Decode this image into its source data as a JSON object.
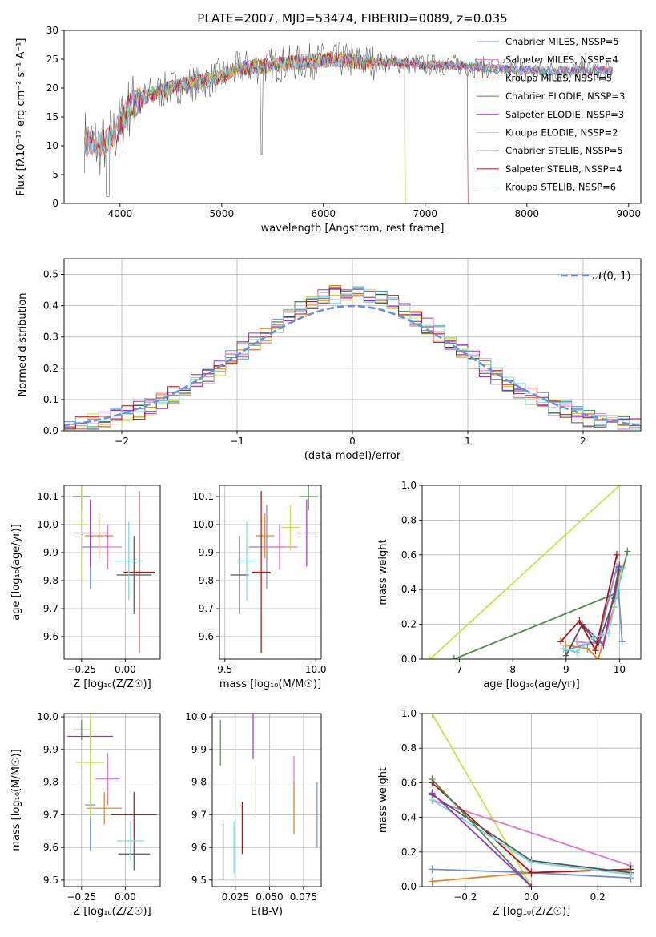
{
  "figure_title": "PLATE=2007, MJD=53474, FIBERID=0089, z=0.035",
  "colors": {
    "Chabrier MILES": "#6a8fdc",
    "Salpeter MILES": "#e377c2",
    "Kroupa MILES": "#e6801c",
    "Chabrier ELODIE": "#4f8a50",
    "Salpeter ELODIE": "#9b30c8",
    "Kroupa ELODIE": "#c8e24a",
    "Chabrier STELIB": "#555555",
    "Salpeter STELIB": "#b01010",
    "Kroupa STELIB": "#7ad8e0",
    "normal_curve": "#6a8fdc"
  },
  "chart_data": [
    {
      "id": "spectrum",
      "type": "line",
      "title": "PLATE=2007, MJD=53474, FIBERID=0089, z=0.035",
      "xlabel": "wavelength [Angstrom, rest frame]",
      "ylabel": "Flux [fλ10⁻¹⁷ erg cm⁻² s⁻¹ A⁻¹]",
      "xlim": [
        3450,
        9120
      ],
      "ylim": [
        0,
        30
      ],
      "xticks": [
        4000,
        5000,
        6000,
        7000,
        8000,
        9000
      ],
      "yticks": [
        0,
        5,
        10,
        15,
        20,
        25,
        30
      ],
      "legend_position": "top-right",
      "legend": [
        "Chabrier MILES, NSSP=5",
        "Salpeter MILES, NSSP=4",
        "Kroupa MILES, NSSP=5",
        "Chabrier ELODIE, NSSP=3",
        "Salpeter ELODIE, NSSP=3",
        "Kroupa ELODIE, NSSP=2",
        "Chabrier STELIB, NSSP=5",
        "Salpeter STELIB, NSSP=4",
        "Kroupa STELIB, NSSP=6"
      ],
      "continuum_x": [
        3650,
        3800,
        3950,
        4100,
        4300,
        4600,
        4900,
        5200,
        5500,
        5800,
        6100,
        6400,
        6700,
        7000,
        7300,
        7600,
        8000,
        8400,
        8850
      ],
      "continuum_y": [
        11,
        10,
        12,
        17,
        19,
        20.5,
        21.5,
        23.5,
        24,
        24.5,
        25,
        24.5,
        24.5,
        24,
        24,
        23.5,
        23,
        23,
        23
      ],
      "dropouts": [
        {
          "series": "Kroupa ELODIE",
          "x": 6800
        },
        {
          "series": "Salpeter STELIB",
          "x": 7420
        }
      ]
    },
    {
      "id": "residuals",
      "type": "histogram",
      "xlabel": "(data-model)/error",
      "ylabel": "Normed distribution",
      "xlim": [
        -2.5,
        2.5
      ],
      "ylim": [
        0,
        0.55
      ],
      "xticks": [
        -2,
        -1,
        0,
        1,
        2
      ],
      "yticks": [
        0.0,
        0.1,
        0.2,
        0.3,
        0.4,
        0.5
      ],
      "legend": [
        "𝒩(0, 1)"
      ],
      "legend_position": "top-right",
      "bin_width": 0.1
    },
    {
      "id": "age_vs_Z",
      "type": "errorbar",
      "xlabel": "Z [log₁₀(Z/Z☉)]",
      "ylabel": "age  [log₁₀(age/yr)]",
      "xlim": [
        -0.35,
        0.2
      ],
      "ylim": [
        9.52,
        10.14
      ],
      "xticks": [
        -0.25,
        0.0
      ],
      "xticklabels": [
        "−0.25",
        "0.00"
      ],
      "yticks": [
        9.6,
        9.7,
        9.8,
        9.9,
        10.0,
        10.1
      ],
      "points": [
        {
          "series": "Chabrier MILES",
          "x": -0.2,
          "y": 9.92,
          "xerr": 0.05,
          "yerr": 0.15
        },
        {
          "series": "Salpeter MILES",
          "x": -0.1,
          "y": 9.92,
          "xerr": 0.08,
          "yerr": 0.08
        },
        {
          "series": "Kroupa MILES",
          "x": -0.15,
          "y": 9.96,
          "xerr": 0.08,
          "yerr": 0.08
        },
        {
          "series": "Chabrier ELODIE",
          "x": -0.25,
          "y": 10.1,
          "xerr": 0.05,
          "yerr": 0.05
        },
        {
          "series": "Salpeter ELODIE",
          "x": -0.2,
          "y": 9.97,
          "xerr": 0.1,
          "yerr": 0.12
        },
        {
          "series": "Kroupa ELODIE",
          "x": -0.25,
          "y": 10.0,
          "xerr": 0.05,
          "yerr": 0.2
        },
        {
          "series": "Chabrier STELIB",
          "x": 0.05,
          "y": 9.82,
          "xerr": 0.1,
          "yerr": 0.14
        },
        {
          "series": "Salpeter STELIB",
          "x": 0.08,
          "y": 9.83,
          "xerr": 0.09,
          "yerr": 0.29
        },
        {
          "series": "Kroupa STELIB",
          "x": 0.02,
          "y": 9.87,
          "xerr": 0.08,
          "yerr": 0.14
        }
      ]
    },
    {
      "id": "age_vs_mass",
      "type": "errorbar",
      "xlabel": "mass [log₁₀(M/M☉)]",
      "ylabel": "",
      "xlim": [
        9.47,
        10.03
      ],
      "ylim": [
        9.52,
        10.14
      ],
      "xticks": [
        9.5,
        10.0
      ],
      "yticks": [
        9.6,
        9.7,
        9.8,
        9.9,
        10.0,
        10.1
      ],
      "points": [
        {
          "series": "Chabrier MILES",
          "x": 9.73,
          "y": 9.92,
          "xerr": 0.1,
          "yerr": 0.15
        },
        {
          "series": "Salpeter MILES",
          "x": 9.8,
          "y": 9.92,
          "xerr": 0.1,
          "yerr": 0.08
        },
        {
          "series": "Kroupa MILES",
          "x": 9.72,
          "y": 9.96,
          "xerr": 0.05,
          "yerr": 0.08
        },
        {
          "series": "Chabrier ELODIE",
          "x": 9.96,
          "y": 10.1,
          "xerr": 0.05,
          "yerr": 0.05
        },
        {
          "series": "Salpeter ELODIE",
          "x": 9.95,
          "y": 9.97,
          "xerr": 0.05,
          "yerr": 0.12
        },
        {
          "series": "Kroupa ELODIE",
          "x": 9.86,
          "y": 9.99,
          "xerr": 0.05,
          "yerr": 0.08
        },
        {
          "series": "Chabrier STELIB",
          "x": 9.58,
          "y": 9.82,
          "xerr": 0.05,
          "yerr": 0.14
        },
        {
          "series": "Salpeter STELIB",
          "x": 9.7,
          "y": 9.83,
          "xerr": 0.05,
          "yerr": 0.29
        },
        {
          "series": "Kroupa STELIB",
          "x": 9.62,
          "y": 9.87,
          "xerr": 0.05,
          "yerr": 0.14
        }
      ]
    },
    {
      "id": "massweight_vs_age",
      "type": "line",
      "xlabel": "age  [log₁₀(age/yr)]",
      "ylabel": "mass weight",
      "xlim": [
        6.3,
        10.4
      ],
      "ylim": [
        0,
        1.0
      ],
      "xticks": [
        7,
        8,
        9,
        10
      ],
      "yticks": [
        0.0,
        0.2,
        0.4,
        0.6,
        0.8,
        1.0
      ],
      "series": [
        {
          "series": "Kroupa ELODIE",
          "x": [
            6.45,
            10.0
          ],
          "y": [
            0.0,
            1.0
          ]
        },
        {
          "series": "Chabrier ELODIE",
          "x": [
            6.9,
            9.95,
            10.15
          ],
          "y": [
            0.0,
            0.38,
            0.62
          ]
        },
        {
          "series": "Chabrier MILES",
          "x": [
            9.0,
            9.3,
            9.6,
            9.95,
            10.05
          ],
          "y": [
            0.05,
            0.08,
            0.1,
            0.53,
            0.1
          ]
        },
        {
          "series": "Salpeter MILES",
          "x": [
            9.2,
            9.5,
            9.75,
            10.0
          ],
          "y": [
            0.1,
            0.09,
            0.15,
            0.53
          ]
        },
        {
          "series": "Kroupa MILES",
          "x": [
            9.0,
            9.4,
            9.6,
            9.9,
            10.0,
            10.05
          ],
          "y": [
            0.08,
            0.06,
            0.0,
            0.3,
            0.5,
            0.53
          ]
        },
        {
          "series": "Salpeter ELODIE",
          "x": [
            9.3,
            9.7,
            10.0
          ],
          "y": [
            0.2,
            0.08,
            0.54
          ]
        },
        {
          "series": "Chabrier STELIB",
          "x": [
            9.0,
            9.3,
            9.6,
            9.9,
            10.0
          ],
          "y": [
            0.02,
            0.2,
            0.08,
            0.35,
            0.53
          ]
        },
        {
          "series": "Salpeter STELIB",
          "x": [
            8.9,
            9.25,
            9.55,
            9.95
          ],
          "y": [
            0.1,
            0.22,
            0.05,
            0.6
          ]
        },
        {
          "series": "Kroupa STELIB",
          "x": [
            8.95,
            9.2,
            9.5,
            9.8,
            10.05
          ],
          "y": [
            0.06,
            0.04,
            0.12,
            0.15,
            0.52
          ]
        }
      ]
    },
    {
      "id": "mass_vs_Z",
      "type": "errorbar",
      "xlabel": "Z [log₁₀(Z/Z☉)]",
      "ylabel": "mass [log₁₀(M/M☉)]",
      "xlim": [
        -0.35,
        0.2
      ],
      "ylim": [
        9.48,
        10.01
      ],
      "xticks": [
        -0.25,
        0.0
      ],
      "xticklabels": [
        "−0.25",
        "0.00"
      ],
      "yticks": [
        9.5,
        9.6,
        9.7,
        9.8,
        9.9,
        10.0
      ],
      "points": [
        {
          "series": "Chabrier MILES",
          "x": -0.2,
          "y": 9.73,
          "xerr": 0.03,
          "yerr": 0.14
        },
        {
          "series": "Salpeter MILES",
          "x": -0.1,
          "y": 9.81,
          "xerr": 0.07,
          "yerr": 0.08
        },
        {
          "series": "Kroupa MILES",
          "x": -0.12,
          "y": 9.72,
          "xerr": 0.1,
          "yerr": 0.05
        },
        {
          "series": "Chabrier ELODIE",
          "x": -0.25,
          "y": 9.96,
          "xerr": 0.05,
          "yerr": 0.03
        },
        {
          "series": "Salpeter ELODIE",
          "x": -0.2,
          "y": 9.94,
          "xerr": 0.13,
          "yerr": 0.05
        },
        {
          "series": "Kroupa ELODIE",
          "x": -0.2,
          "y": 9.86,
          "xerr": 0.08,
          "yerr": 0.17
        },
        {
          "series": "Chabrier STELIB",
          "x": 0.05,
          "y": 9.58,
          "xerr": 0.09,
          "yerr": 0.05
        },
        {
          "series": "Salpeter STELIB",
          "x": 0.05,
          "y": 9.7,
          "xerr": 0.13,
          "yerr": 0.07
        },
        {
          "series": "Kroupa STELIB",
          "x": 0.03,
          "y": 9.62,
          "xerr": 0.08,
          "yerr": 0.06
        }
      ]
    },
    {
      "id": "mass_vs_ebv",
      "type": "errorbar",
      "xlabel": "E(B-V)",
      "ylabel": "",
      "xlim": [
        0.008,
        0.088
      ],
      "ylim": [
        9.48,
        10.01
      ],
      "xticks": [
        0.025,
        0.05,
        0.075
      ],
      "xticklabels": [
        "0.025",
        "0.050",
        "0.075"
      ],
      "yticks": [
        9.5,
        9.6,
        9.7,
        9.8,
        9.9,
        10.0
      ],
      "points": [
        {
          "series": "Chabrier MILES",
          "x": 0.085,
          "y": 9.7,
          "yerr": 0.1
        },
        {
          "series": "Salpeter MILES",
          "x": 0.068,
          "y": 9.8,
          "yerr": 0.08
        },
        {
          "series": "Kroupa MILES",
          "x": 0.068,
          "y": 9.72,
          "yerr": 0.08
        },
        {
          "series": "Chabrier ELODIE",
          "x": 0.014,
          "y": 9.92,
          "yerr": 0.07
        },
        {
          "series": "Salpeter ELODIE",
          "x": 0.038,
          "y": 9.94,
          "yerr": 0.07
        },
        {
          "series": "Kroupa ELODIE",
          "x": 0.04,
          "y": 9.77,
          "yerr": 0.08
        },
        {
          "series": "Chabrier STELIB",
          "x": 0.016,
          "y": 9.59,
          "yerr": 0.09
        },
        {
          "series": "Salpeter STELIB",
          "x": 0.03,
          "y": 9.66,
          "yerr": 0.08
        },
        {
          "series": "Kroupa STELIB",
          "x": 0.024,
          "y": 9.6,
          "yerr": 0.08
        }
      ]
    },
    {
      "id": "massweight_vs_Z",
      "type": "line",
      "xlabel": "Z [log₁₀(Z/Z☉)]",
      "ylabel": "mass weight",
      "xlim": [
        -0.33,
        0.33
      ],
      "ylim": [
        0,
        1.0
      ],
      "xticks": [
        -0.2,
        0.0,
        0.2
      ],
      "xticklabels": [
        "−0.2",
        "0.0",
        "0.2"
      ],
      "yticks": [
        0.0,
        0.2,
        0.4,
        0.6,
        0.8,
        1.0
      ],
      "series": [
        {
          "series": "Kroupa ELODIE",
          "x": [
            -0.3,
            0.0
          ],
          "y": [
            1.0,
            0.0
          ]
        },
        {
          "series": "Salpeter MILES",
          "x": [
            -0.3,
            0.3
          ],
          "y": [
            0.5,
            0.12
          ]
        },
        {
          "series": "Chabrier MILES",
          "x": [
            -0.3,
            0.0,
            0.3
          ],
          "y": [
            0.1,
            0.08,
            0.05
          ]
        },
        {
          "series": "Kroupa MILES",
          "x": [
            -0.3,
            0.0,
            0.3
          ],
          "y": [
            0.03,
            0.08,
            0.1
          ]
        },
        {
          "series": "Salpeter STELIB",
          "x": [
            -0.3,
            0.0,
            0.3
          ],
          "y": [
            0.6,
            0.08,
            0.1
          ]
        },
        {
          "series": "Chabrier STELIB",
          "x": [
            -0.3,
            0.0,
            0.3
          ],
          "y": [
            0.53,
            0.15,
            0.08
          ]
        },
        {
          "series": "Kroupa STELIB",
          "x": [
            -0.3,
            0.0,
            0.3
          ],
          "y": [
            0.5,
            0.14,
            0.07
          ]
        },
        {
          "series": "Chabrier ELODIE",
          "x": [
            -0.3,
            0.0
          ],
          "y": [
            0.62,
            0.0
          ]
        },
        {
          "series": "Salpeter ELODIE",
          "x": [
            -0.3,
            0.0
          ],
          "y": [
            0.54,
            0.0
          ]
        }
      ]
    }
  ]
}
